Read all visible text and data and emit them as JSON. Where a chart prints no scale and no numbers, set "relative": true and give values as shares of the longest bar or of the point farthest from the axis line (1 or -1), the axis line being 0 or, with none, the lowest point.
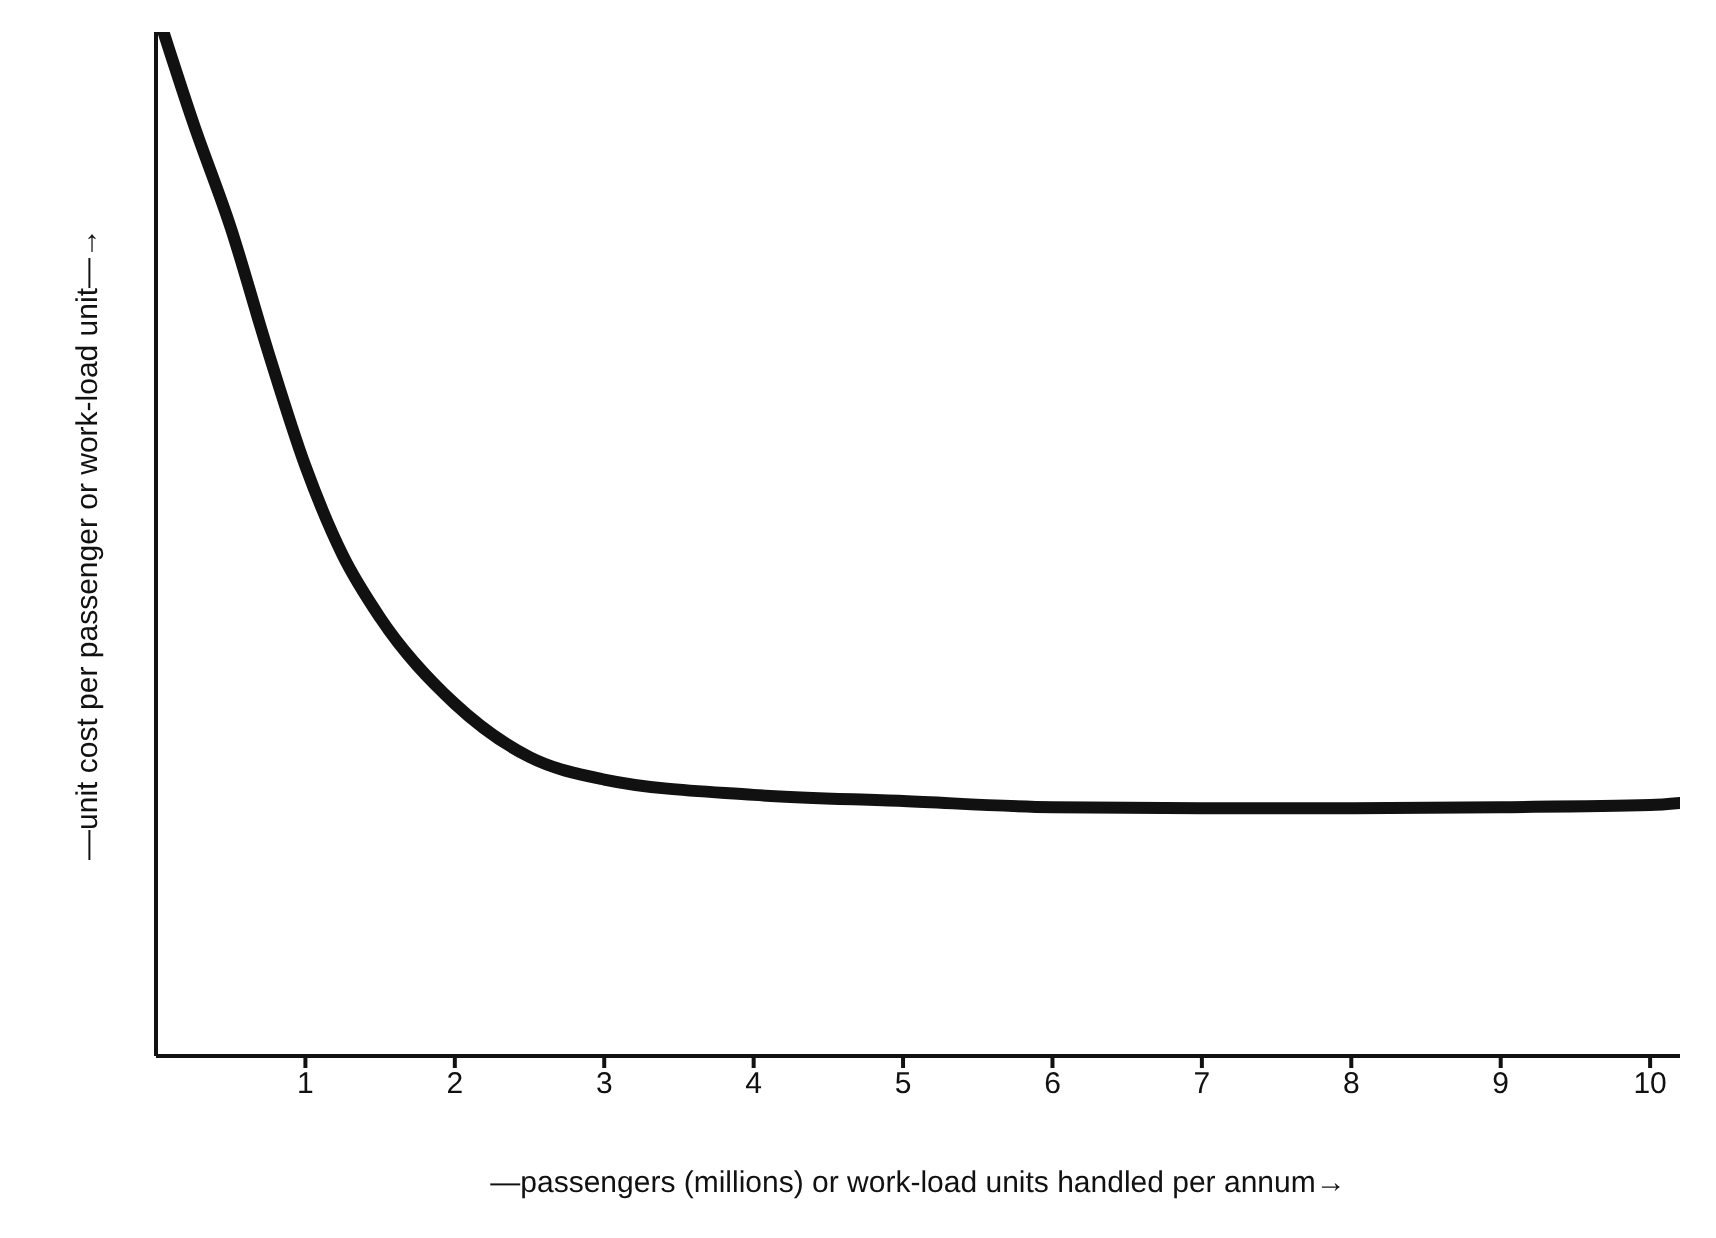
{
  "chart_data": {
    "type": "line",
    "relative": true,
    "xlabel": "—passengers (millions) or work-load units handled per annum→",
    "ylabel": "—unit cost per passenger or work-load unit—→",
    "xlim": [
      0,
      10.2
    ],
    "xticks": [
      1,
      2,
      3,
      4,
      5,
      6,
      7,
      8,
      9,
      10
    ],
    "grid": false,
    "legend": false,
    "marker": "none",
    "line_style": "solid",
    "series": [
      {
        "color": "#111111",
        "x": [
          0.05,
          0.25,
          0.5,
          0.75,
          1,
          1.25,
          1.5,
          2,
          2.5,
          3,
          4,
          5,
          6,
          7,
          8,
          9,
          10,
          10.2
        ],
        "values": [
          1,
          0.911,
          0.809,
          0.688,
          0.576,
          0.489,
          0.428,
          0.344,
          0.292,
          0.27,
          0.255,
          0.249,
          0.243,
          0.242,
          0.242,
          0.243,
          0.245,
          0.247
        ]
      }
    ]
  }
}
